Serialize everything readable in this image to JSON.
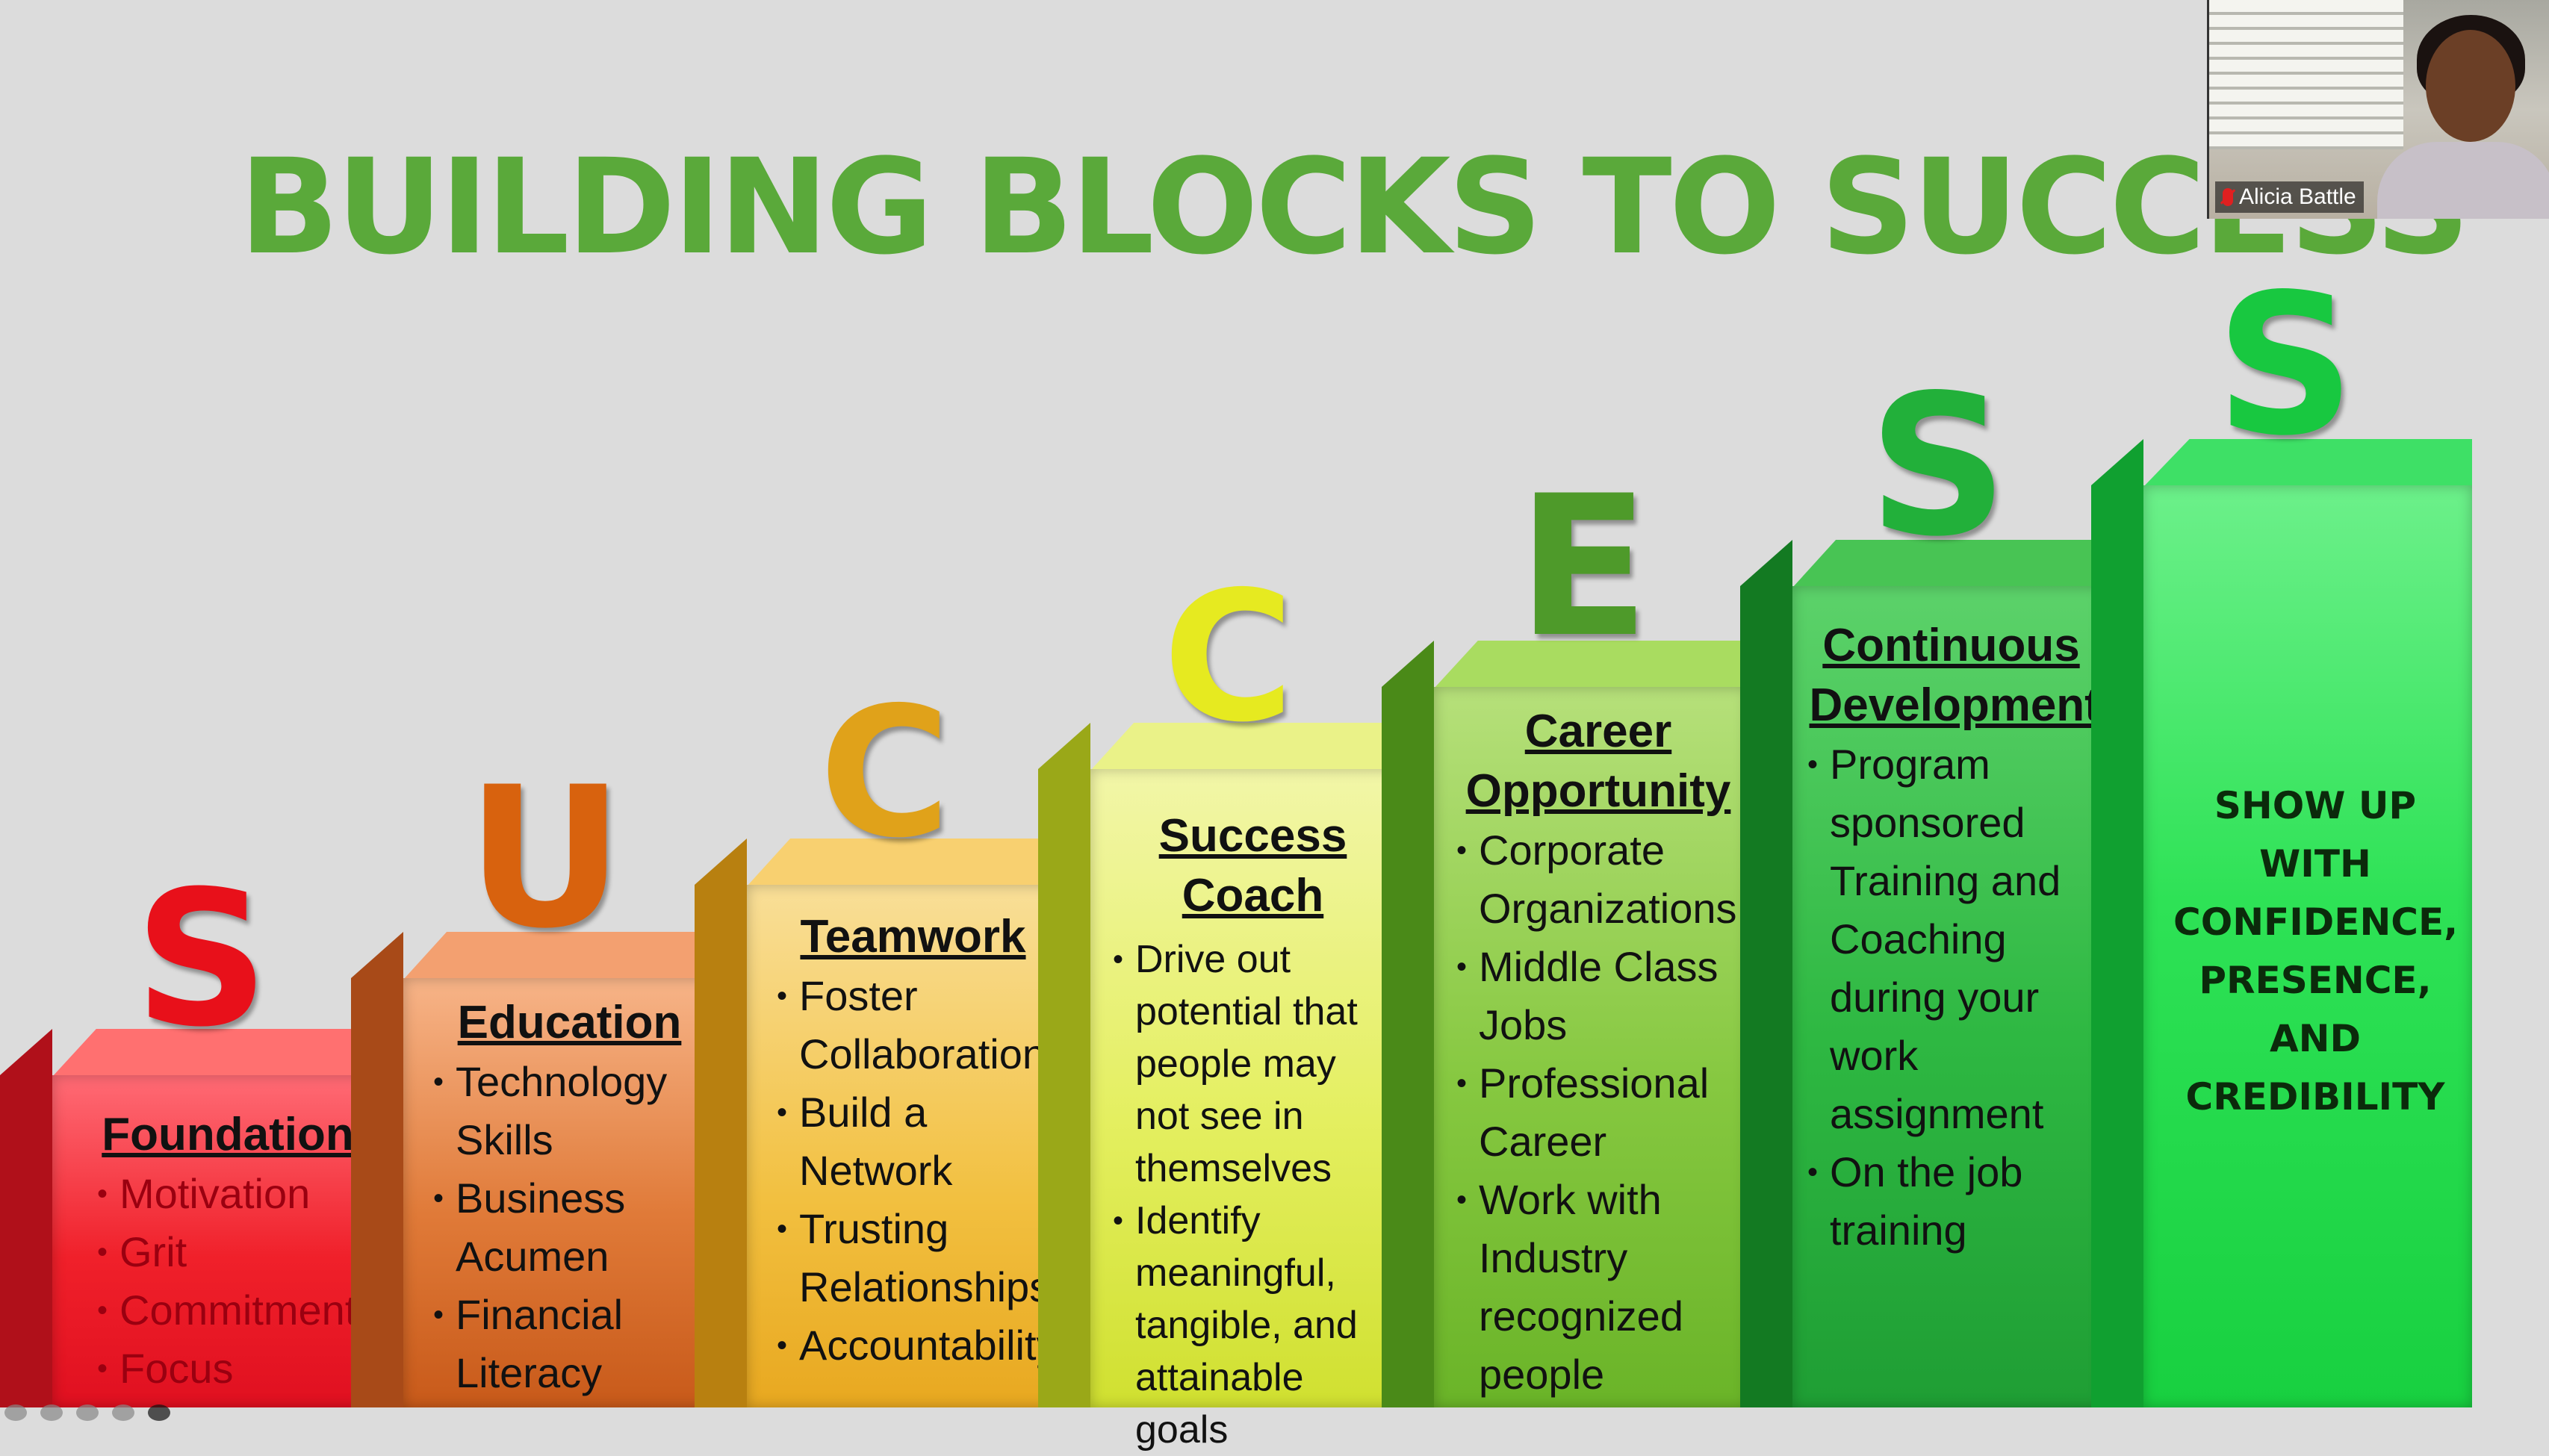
{
  "slide": {
    "title": "BUILDING BLOCKS TO SUCCESS",
    "blocks": [
      {
        "letter": "S",
        "heading": "Foundation",
        "bullets": [
          "Motivation",
          "Grit",
          "Commitment",
          "Focus"
        ]
      },
      {
        "letter": "U",
        "heading": "Education",
        "bullets": [
          "Technology Skills",
          "Business Acumen",
          "Financial Literacy"
        ]
      },
      {
        "letter": "C",
        "heading": "Teamwork",
        "bullets": [
          "Foster Collaboration",
          "Build a Network",
          "Trusting Relationships",
          "Accountability"
        ]
      },
      {
        "letter": "C",
        "heading": "Success Coach",
        "bullets": [
          "Drive out potential that people may not see in themselves",
          "Identify meaningful, tangible, and attainable goals"
        ]
      },
      {
        "letter": "E",
        "heading": "Career Opportunity",
        "bullets": [
          "Corporate Organizations",
          "Middle Class Jobs",
          "Professional Career",
          "Work with Industry recognized people"
        ]
      },
      {
        "letter": "S",
        "heading": "Continuous Development",
        "bullets": [
          "Program sponsored Training and Coaching during your work assignment",
          "On the job training"
        ]
      },
      {
        "letter": "S",
        "statement": "SHOW UP WITH CONFIDENCE, PRESENCE, AND CREDIBILITY"
      }
    ],
    "colors": {
      "title": "#5aa93a",
      "block1": "#f0202a",
      "block2": "#d86a2a",
      "block3": "#f2b630",
      "block4": "#d8ea3a",
      "block5": "#7dc63a",
      "block6": "#2aa83a",
      "block7": "#22d84a"
    }
  },
  "video": {
    "participant_name": "Alicia Battle",
    "mic_state": "muted-mic-icon"
  },
  "toolbar": {
    "icons": [
      "back-arrow-icon",
      "pen-icon",
      "zoom-icon",
      "more-icon",
      "forward-arrow-icon"
    ]
  }
}
